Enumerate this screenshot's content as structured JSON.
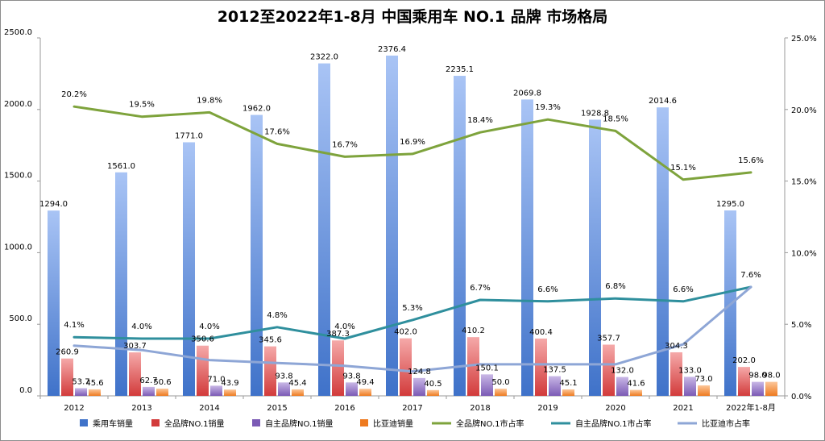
{
  "chart_data": {
    "type": "bar",
    "title": "2012至2022年1-8月 中国乘用车 NO.1 品牌 市场格局",
    "categories": [
      "2012",
      "2013",
      "2014",
      "2015",
      "2016",
      "2017",
      "2018",
      "2019",
      "2020",
      "2021",
      "2022年1-8月"
    ],
    "y_left": {
      "min": 0,
      "max": 2500,
      "ticks": [
        "0.0",
        "500.0",
        "1000.0",
        "1500.0",
        "2000.0",
        "2500.0"
      ]
    },
    "y_right": {
      "min": 0,
      "max": 25,
      "ticks": [
        "0.0%",
        "5.0%",
        "10.0%",
        "15.0%",
        "20.0%",
        "25.0%"
      ]
    },
    "bar_series": [
      {
        "name": "乘用车销量",
        "color_top": "#a9c4f5",
        "color_bottom": "#3f72c9",
        "values": [
          1294.0,
          1561.0,
          1771.0,
          1962.0,
          2322.0,
          2376.4,
          2235.1,
          2069.8,
          1928.8,
          2014.6,
          1295.0
        ],
        "labels": [
          "1294.0",
          "1561.0",
          "1771.0",
          "1962.0",
          "2322.0",
          "2376.4",
          "2235.1",
          "2069.8",
          "1928.8",
          "2014.6",
          "1295.0"
        ]
      },
      {
        "name": "全品牌NO.1销量",
        "color_top": "#f5a9a9",
        "color_bottom": "#d23b3b",
        "values": [
          260.9,
          303.7,
          350.6,
          345.6,
          387.3,
          402.0,
          410.2,
          400.4,
          357.7,
          304.3,
          202.0
        ],
        "labels": [
          "260.9",
          "303.7",
          "350.6",
          "345.6",
          "387.3",
          "402.0",
          "410.2",
          "400.4",
          "357.7",
          "304.3",
          "202.0"
        ]
      },
      {
        "name": "自主品牌NO.1销量",
        "color_top": "#c9b8e6",
        "color_bottom": "#7b5ab5",
        "values": [
          53.7,
          62.7,
          71.0,
          93.8,
          93.8,
          124.8,
          150.1,
          137.5,
          132.0,
          133.0,
          98.0
        ],
        "labels": [
          "53.7",
          "62.7",
          "71.0",
          "93.8",
          "93.8",
          "124.8",
          "150.1",
          "137.5",
          "132.0",
          "133.0",
          "98.0"
        ]
      },
      {
        "name": "比亚迪销量",
        "color_top": "#fcc79a",
        "color_bottom": "#ee7a1f",
        "values": [
          45.6,
          50.6,
          43.9,
          45.4,
          49.4,
          40.5,
          50.0,
          45.1,
          41.6,
          73.0,
          98.0
        ],
        "labels": [
          "45.6",
          "50.6",
          "43.9",
          "45.4",
          "49.4",
          "40.5",
          "50.0",
          "45.1",
          "41.6",
          "73.0",
          "98.0"
        ]
      }
    ],
    "line_series": [
      {
        "name": "全品牌NO.1市占率",
        "color": "#7ea33c",
        "values": [
          20.2,
          19.5,
          19.8,
          17.6,
          16.7,
          16.9,
          18.4,
          19.3,
          18.5,
          15.1,
          15.6
        ],
        "labels": [
          "20.2%",
          "19.5%",
          "19.8%",
          "17.6%",
          "16.7%",
          "16.9%",
          "18.4%",
          "19.3%",
          "18.5%",
          "15.1%",
          "15.6%"
        ]
      },
      {
        "name": "自主品牌NO.1市占率",
        "color": "#2f8f9d",
        "values": [
          4.1,
          4.0,
          4.0,
          4.8,
          4.0,
          5.3,
          6.7,
          6.6,
          6.8,
          6.6,
          7.6
        ],
        "labels": [
          "4.1%",
          "4.0%",
          "4.0%",
          "4.8%",
          "4.0%",
          "5.3%",
          "6.7%",
          "6.6%",
          "6.8%",
          "6.6%",
          "7.6%"
        ]
      },
      {
        "name": "比亚迪市占率",
        "color": "#8ea6d6",
        "values": [
          3.5,
          3.2,
          2.5,
          2.3,
          2.1,
          1.7,
          2.2,
          2.2,
          2.2,
          3.6,
          7.6
        ],
        "labels": []
      }
    ],
    "legend": [
      "乘用车销量",
      "全品牌NO.1销量",
      "自主品牌NO.1销量",
      "比亚迪销量",
      "全品牌NO.1市占率",
      "自主品牌NO.1市占率",
      "比亚迪市占率"
    ],
    "legend_position": "bottom",
    "grid": false
  }
}
